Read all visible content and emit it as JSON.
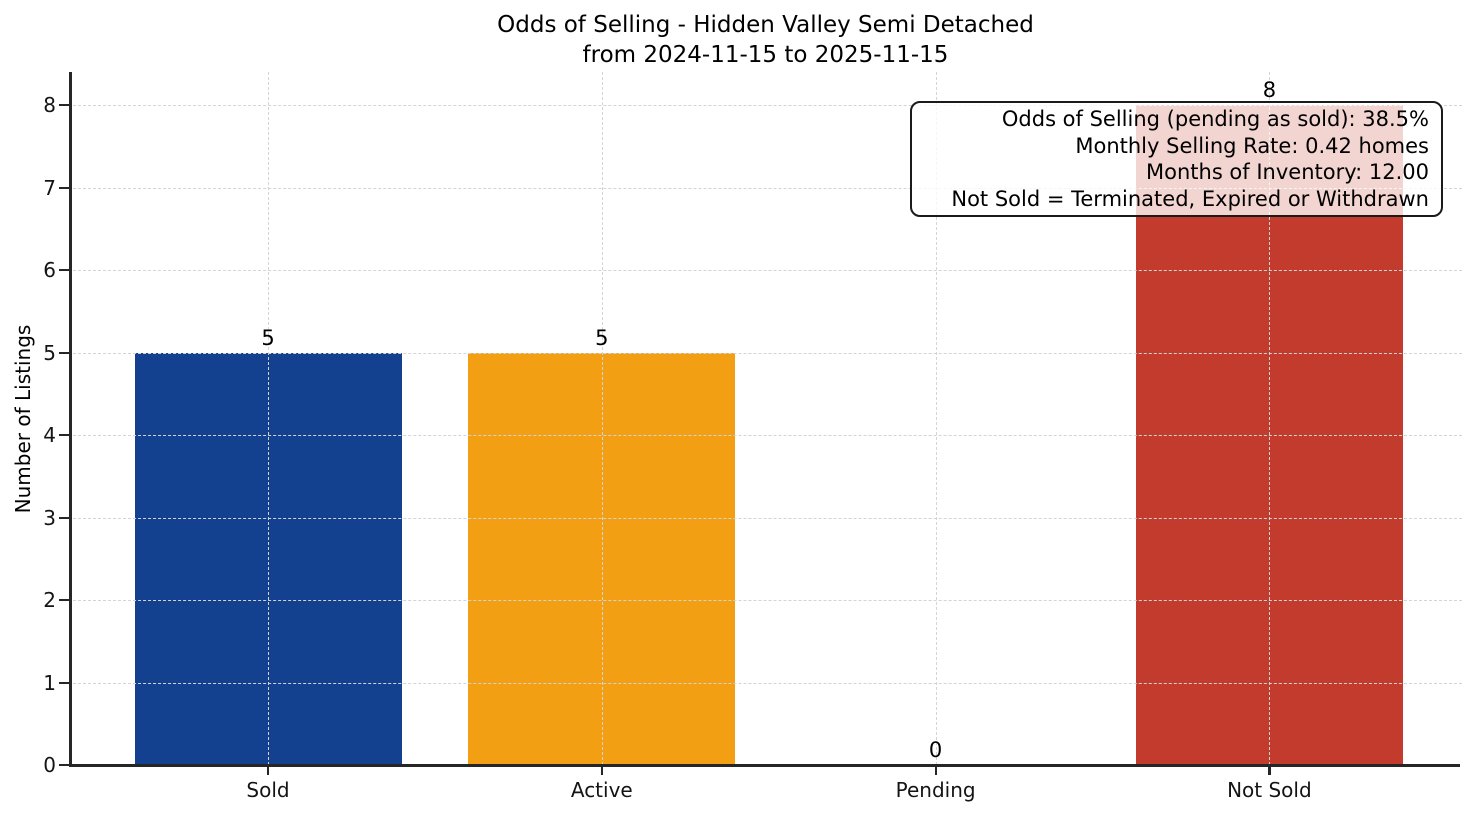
{
  "title": {
    "line1": "Odds of Selling - Hidden Valley Semi Detached",
    "line2": "from 2024-11-15 to 2025-11-15"
  },
  "chart_data": {
    "type": "bar",
    "title": "Odds of Selling - Hidden Valley Semi Detached from 2024-11-15 to 2025-11-15",
    "categories": [
      "Sold",
      "Active",
      "Pending",
      "Not Sold"
    ],
    "values": [
      5,
      5,
      0,
      8
    ],
    "value_labels": [
      "5",
      "5",
      "0",
      "8"
    ],
    "bar_colors": [
      "#14418f",
      "#f29f13",
      null,
      "#c23b2c"
    ],
    "xlabel": "",
    "ylabel": "Number of Listings",
    "ylim": [
      0,
      8.4
    ],
    "yticks": [
      0,
      1,
      2,
      3,
      4,
      5,
      6,
      7,
      8
    ],
    "grid": {
      "visible": true,
      "style": "dashed",
      "axes": "both",
      "color": "#d4d4d4"
    },
    "legend": null,
    "annotation_box": {
      "position": "top-right",
      "lines": [
        "Odds of Selling (pending as sold): 38.5%",
        "Monthly Selling Rate: 0.42 homes",
        "Months of Inventory: 12.00",
        "Not Sold = Terminated, Expired or Withdrawn"
      ]
    }
  },
  "colors": {
    "axis": "#262626",
    "grid": "#d4d4d4",
    "text": "#000000",
    "annotation_border": "#1a1a1a"
  }
}
